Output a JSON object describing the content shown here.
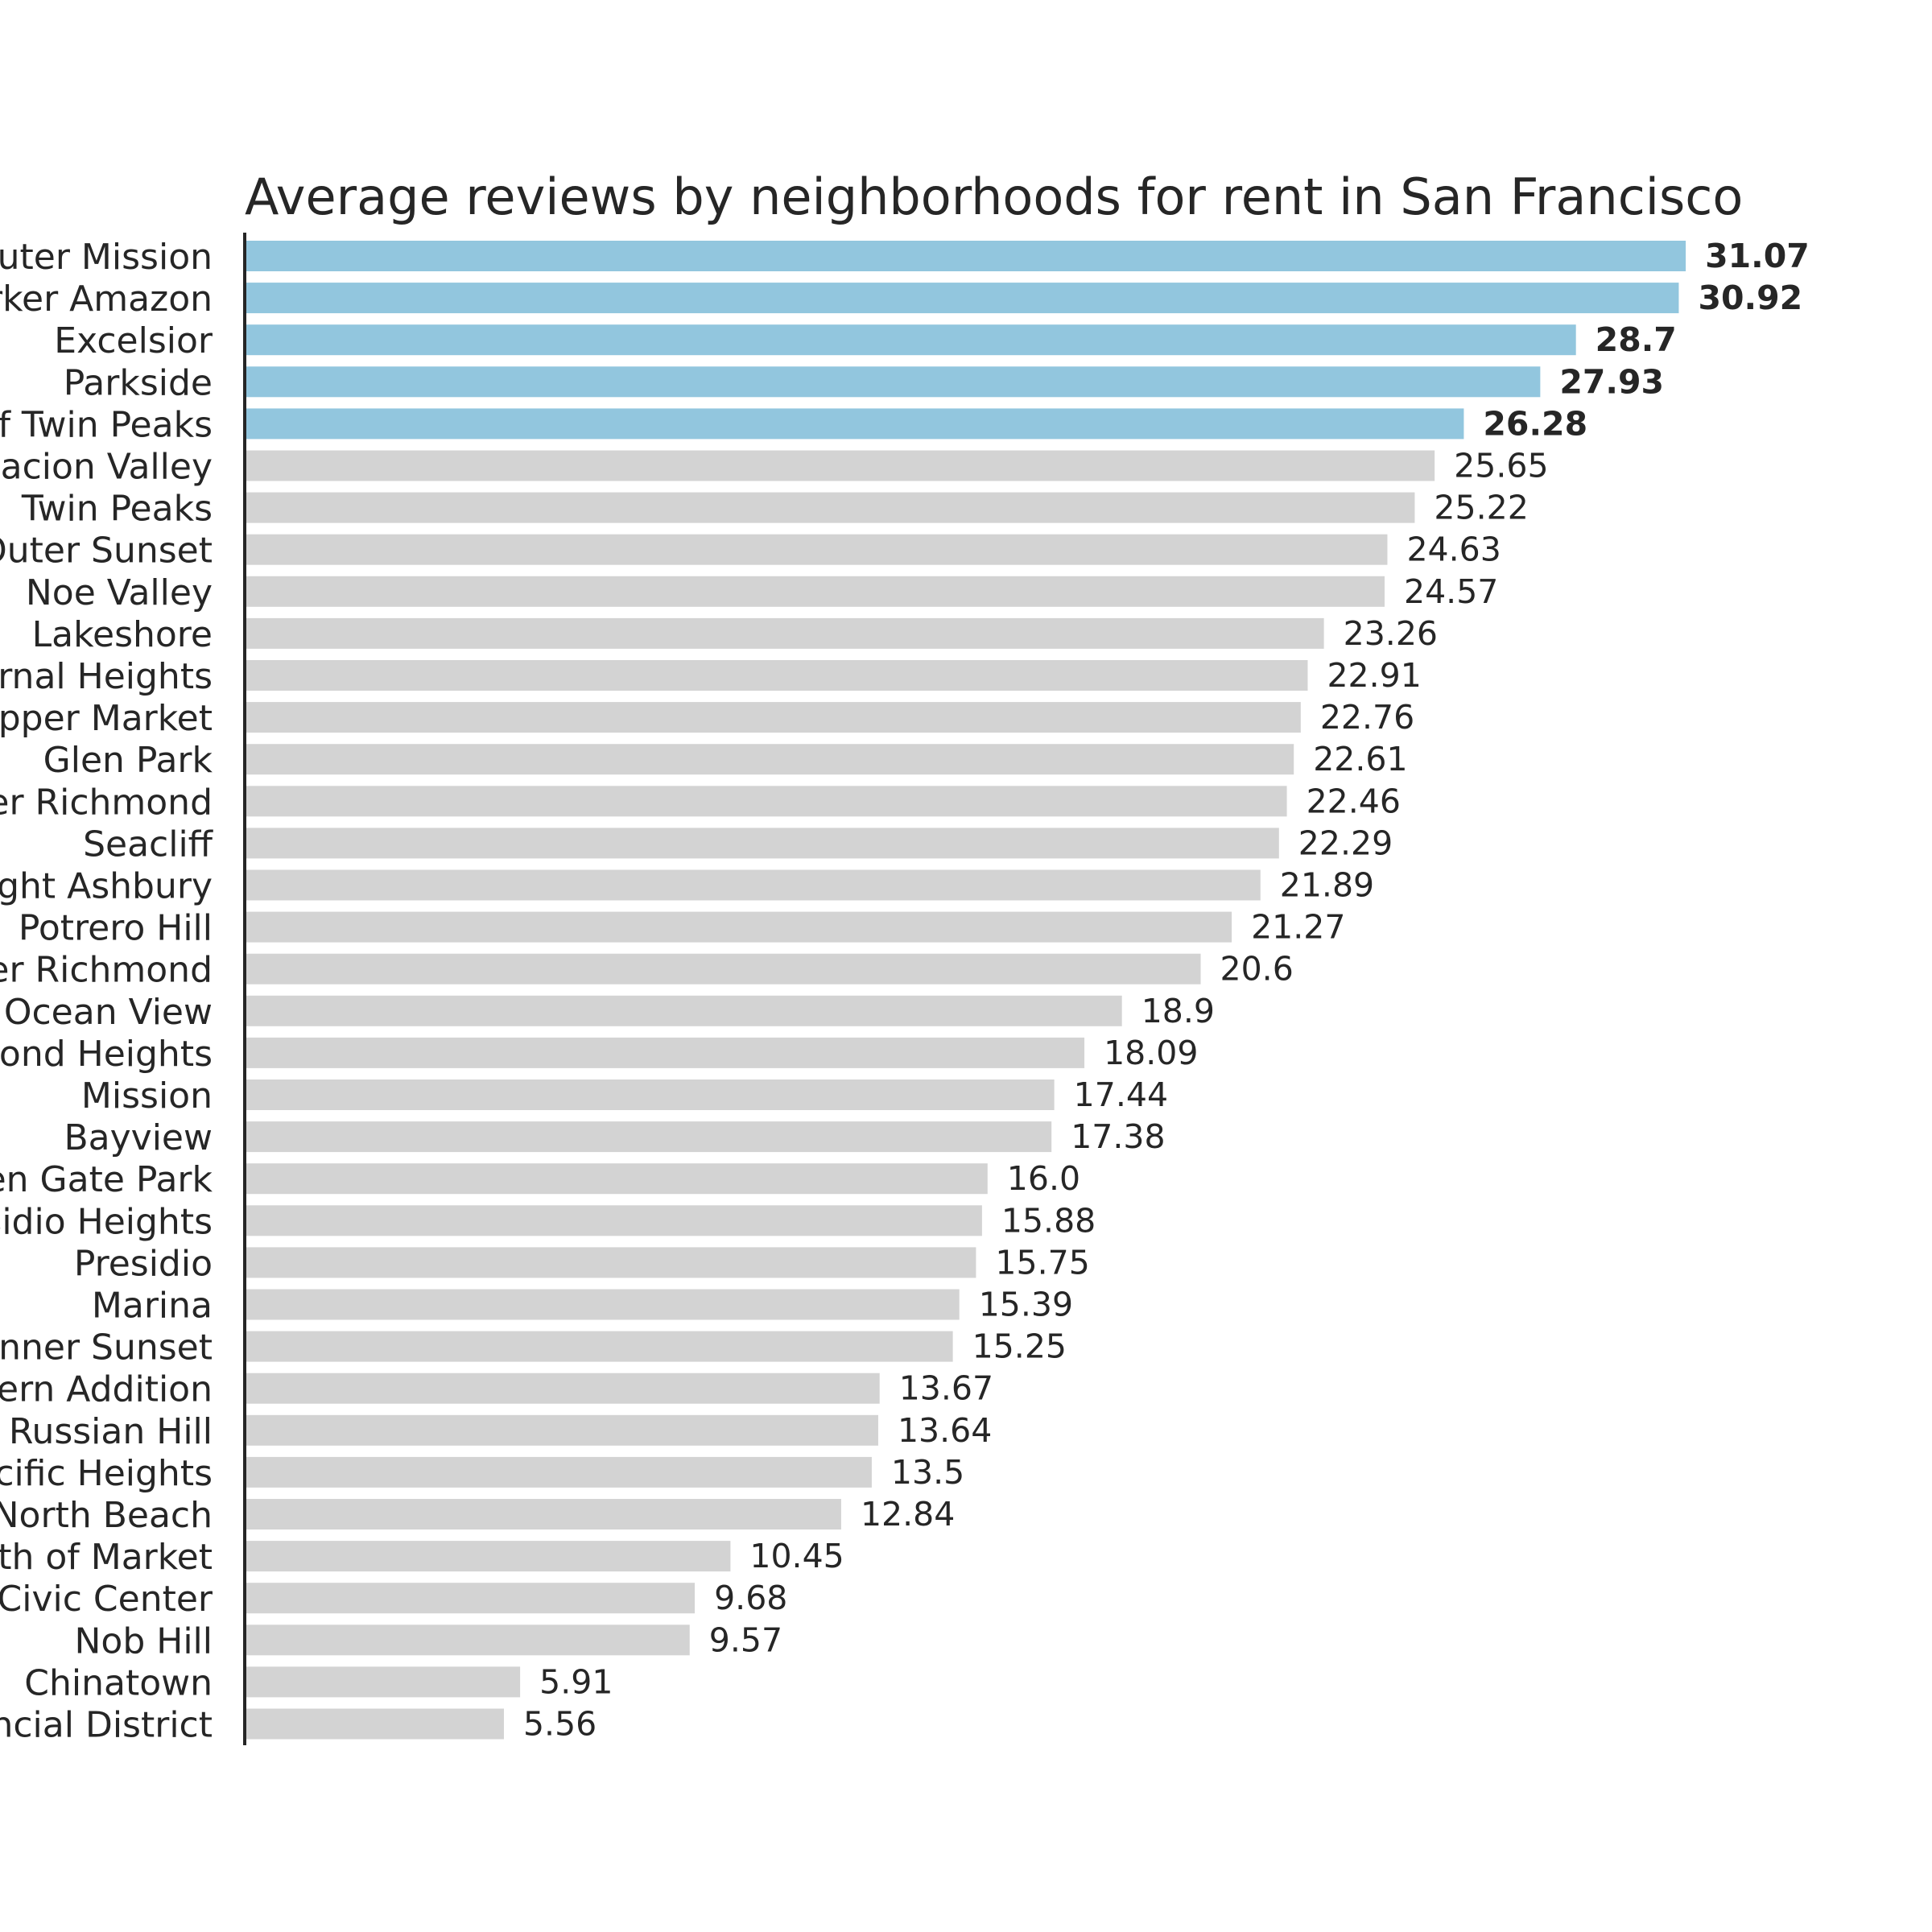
{
  "chart_data": {
    "type": "bar",
    "orientation": "horizontal",
    "title": "Average reviews by neighborhoods for rent in San Francisco",
    "xlabel": "",
    "ylabel": "",
    "xlim": [
      0,
      33
    ],
    "grid": false,
    "highlight_color": "#92c6de",
    "base_color": "#d3d3d3",
    "highlight_count": 5,
    "categories": [
      "Outer Mission",
      "Parker Amazon",
      "Excelsior",
      "Parkside",
      "West of Twin Peaks",
      "Visitacion Valley",
      "Twin Peaks",
      "Outer Sunset",
      "Noe Valley",
      "Lakeshore",
      "Bernal Heights",
      "Upper Market",
      "Glen Park",
      "Outer Richmond",
      "Seacliff",
      "Haight Ashbury",
      "Potrero Hill",
      "Inner Richmond",
      "Ocean View",
      "Diamond Heights",
      "Mission",
      "Bayview",
      "Golden Gate Park",
      "Presidio Heights",
      "Presidio",
      "Marina",
      "Inner Sunset",
      "Western Addition",
      "Russian Hill",
      "Pacific Heights",
      "North Beach",
      "South of Market",
      "Civic Center",
      "Nob Hill",
      "Chinatown",
      "Financial District"
    ],
    "values": [
      31.07,
      30.92,
      28.7,
      27.93,
      26.28,
      25.65,
      25.22,
      24.63,
      24.57,
      23.26,
      22.91,
      22.76,
      22.61,
      22.46,
      22.29,
      21.89,
      21.27,
      20.6,
      18.9,
      18.09,
      17.44,
      17.38,
      16.0,
      15.88,
      15.75,
      15.39,
      15.25,
      13.67,
      13.64,
      13.5,
      12.84,
      10.45,
      9.68,
      9.57,
      5.91,
      5.56
    ],
    "value_labels": [
      "31.07",
      "30.92",
      "28.7",
      "27.93",
      "26.28",
      "25.65",
      "25.22",
      "24.63",
      "24.57",
      "23.26",
      "22.91",
      "22.76",
      "22.61",
      "22.46",
      "22.29",
      "21.89",
      "21.27",
      "20.6",
      "18.9",
      "18.09",
      "17.44",
      "17.38",
      "16.0",
      "15.88",
      "15.75",
      "15.39",
      "15.25",
      "13.67",
      "13.64",
      "13.5",
      "12.84",
      "10.45",
      "9.68",
      "9.57",
      "5.91",
      "5.56"
    ]
  }
}
